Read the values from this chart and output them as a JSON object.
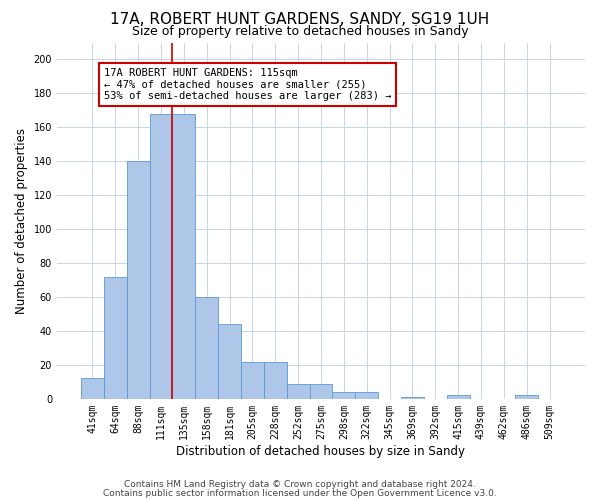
{
  "title1": "17A, ROBERT HUNT GARDENS, SANDY, SG19 1UH",
  "title2": "Size of property relative to detached houses in Sandy",
  "xlabel": "Distribution of detached houses by size in Sandy",
  "ylabel": "Number of detached properties",
  "categories": [
    "41sqm",
    "64sqm",
    "88sqm",
    "111sqm",
    "135sqm",
    "158sqm",
    "181sqm",
    "205sqm",
    "228sqm",
    "252sqm",
    "275sqm",
    "298sqm",
    "322sqm",
    "345sqm",
    "369sqm",
    "392sqm",
    "415sqm",
    "439sqm",
    "462sqm",
    "486sqm",
    "509sqm"
  ],
  "values": [
    12,
    72,
    140,
    168,
    168,
    60,
    44,
    22,
    22,
    9,
    9,
    4,
    4,
    0,
    1,
    0,
    2,
    0,
    0,
    2,
    0
  ],
  "bar_color": "#aec6e8",
  "bar_edge_color": "#5b9bd5",
  "vline_x": 3.5,
  "vline_color": "#cc0000",
  "annotation_text": "17A ROBERT HUNT GARDENS: 115sqm\n← 47% of detached houses are smaller (255)\n53% of semi-detached houses are larger (283) →",
  "annotation_box_color": "#ffffff",
  "annotation_box_edge": "#cc0000",
  "ylim": [
    0,
    210
  ],
  "yticks": [
    0,
    20,
    40,
    60,
    80,
    100,
    120,
    140,
    160,
    180,
    200
  ],
  "footer1": "Contains HM Land Registry data © Crown copyright and database right 2024.",
  "footer2": "Contains public sector information licensed under the Open Government Licence v3.0.",
  "background_color": "#ffffff",
  "grid_color": "#c8d4e8",
  "title1_fontsize": 11,
  "title2_fontsize": 9,
  "tick_fontsize": 7,
  "label_fontsize": 8.5,
  "footer_fontsize": 6.5,
  "ann_fontsize": 7.5
}
